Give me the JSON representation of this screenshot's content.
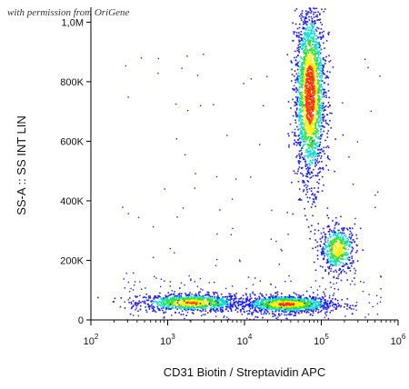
{
  "watermark": "with permission from OriGene",
  "colors": {
    "low": "#1a1aff",
    "mid": "#00e0d0",
    "green": "#33dd33",
    "high": "#ffee00",
    "peak": "#ff3300",
    "axis": "#000000"
  },
  "chart_data": {
    "type": "scatter",
    "subtype": "flow-cytometry-density-dot-plot",
    "xlabel": "CD31 Biotin / Streptavidin APC",
    "ylabel": "SS-A :: SS INT LIN",
    "x_scale": "log",
    "xlim": [
      100,
      1000000
    ],
    "ylim": [
      0,
      1050000
    ],
    "x_ticks": [
      {
        "value": 100,
        "base": "10",
        "exp": "2"
      },
      {
        "value": 1000,
        "base": "10",
        "exp": "3"
      },
      {
        "value": 10000,
        "base": "10",
        "exp": "4"
      },
      {
        "value": 100000,
        "base": "10",
        "exp": "5"
      },
      {
        "value": 1000000,
        "base": "10",
        "exp": "6"
      }
    ],
    "y_ticks": [
      {
        "value": 0,
        "label": "0"
      },
      {
        "value": 200000,
        "label": "200K"
      },
      {
        "value": 400000,
        "label": "400K"
      },
      {
        "value": 600000,
        "label": "600K"
      },
      {
        "value": 800000,
        "label": "800K"
      },
      {
        "value": 1000000,
        "label": "1,0M"
      }
    ],
    "populations": [
      {
        "x_center": 2000,
        "x_spread_decades": 0.35,
        "y_center": 60000,
        "y_spread": 15000,
        "relative_density": 0.18
      },
      {
        "x_center": 35000,
        "x_spread_decades": 0.3,
        "y_center": 55000,
        "y_spread": 15000,
        "relative_density": 0.22
      },
      {
        "x_center": 70000,
        "x_spread_decades": 0.1,
        "y_center": 760000,
        "y_spread": 150000,
        "relative_density": 0.4
      },
      {
        "x_center": 160000,
        "x_spread_decades": 0.12,
        "y_center": 240000,
        "y_spread": 40000,
        "relative_density": 0.1
      }
    ],
    "grid": false,
    "legend": "none"
  }
}
